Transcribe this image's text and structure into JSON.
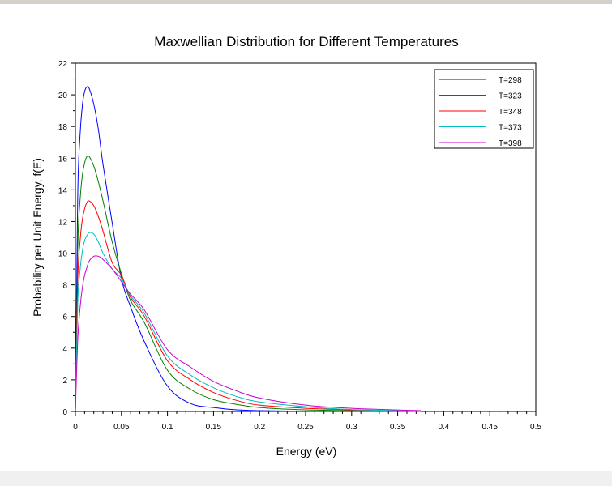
{
  "chart_data": {
    "type": "line",
    "title": "Maxwellian Distribution for Different Temperatures",
    "xlabel": "Energy (eV)",
    "ylabel": "Probability per Unit Energy, f(E)",
    "xlim": [
      0,
      0.5
    ],
    "ylim": [
      0,
      22
    ],
    "xticks": [
      "0",
      "0.05",
      "0.1",
      "0.15",
      "0.2",
      "0.25",
      "0.3",
      "0.35",
      "0.4",
      "0.45",
      "0.5"
    ],
    "yticks": [
      "0",
      "2",
      "4",
      "6",
      "8",
      "10",
      "12",
      "14",
      "16",
      "18",
      "20",
      "22"
    ],
    "grid": false,
    "legend_position": "top-right",
    "x": [
      0,
      0.0025,
      0.005,
      0.0075,
      0.01,
      0.0125,
      0.015,
      0.02,
      0.025,
      0.03,
      0.04,
      0.05,
      0.06,
      0.075,
      0.1,
      0.125,
      0.15,
      0.175,
      0.2,
      0.25,
      0.3,
      0.375
    ],
    "series": [
      {
        "name": "T=298",
        "color": "#0000ff",
        "values": [
          0,
          13.5,
          17.4,
          19.3,
          20.2,
          20.5,
          20.4,
          19.4,
          17.8,
          15.6,
          11.9,
          8.4,
          6.6,
          4.4,
          1.6,
          0.5,
          0.25,
          0.1,
          0.05,
          0.02,
          0.01,
          0
        ]
      },
      {
        "name": "T=323",
        "color": "#008000",
        "values": [
          0,
          10.2,
          13.3,
          14.9,
          15.7,
          16.1,
          16.1,
          15.5,
          14.5,
          13.3,
          10.7,
          8.7,
          7.0,
          5.6,
          2.6,
          1.4,
          0.75,
          0.45,
          0.25,
          0.1,
          0.05,
          0
        ]
      },
      {
        "name": "T=348",
        "color": "#ff0000",
        "values": [
          0,
          8.2,
          10.7,
          12.1,
          12.8,
          13.2,
          13.3,
          13.0,
          12.3,
          11.4,
          9.4,
          8.6,
          7.2,
          6.0,
          3.2,
          2.0,
          1.2,
          0.7,
          0.4,
          0.2,
          0.1,
          0
        ]
      },
      {
        "name": "T=373",
        "color": "#00bfbf",
        "values": [
          0,
          6.8,
          8.9,
          10.1,
          10.8,
          11.1,
          11.3,
          11.2,
          10.7,
          10.0,
          9.0,
          8.4,
          7.3,
          6.2,
          3.5,
          2.3,
          1.5,
          0.95,
          0.6,
          0.3,
          0.12,
          0.02
        ]
      },
      {
        "name": "T=398",
        "color": "#cc00cc",
        "values": [
          0,
          4.5,
          6.5,
          7.8,
          8.6,
          9.1,
          9.5,
          9.8,
          9.8,
          9.6,
          9.0,
          8.2,
          7.4,
          6.4,
          3.9,
          2.8,
          1.9,
          1.3,
          0.85,
          0.4,
          0.2,
          0.05
        ]
      }
    ]
  }
}
